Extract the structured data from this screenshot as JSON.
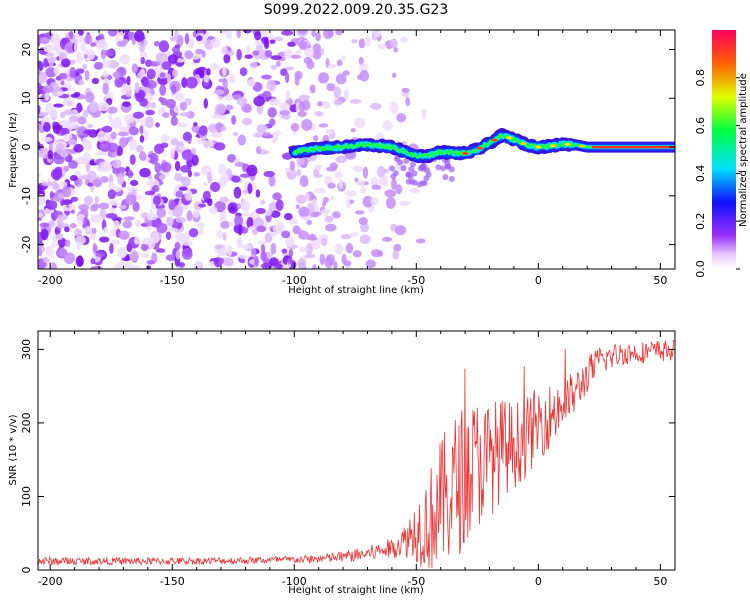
{
  "title": "S099.2022.009.20.35.G23",
  "chart_data": [
    {
      "type": "heatmap",
      "panel": "spectrogram",
      "xlabel": "Height of straight line (km)",
      "ylabel": "Frequency (Hz)",
      "xlim": [
        -205,
        56
      ],
      "ylim": [
        -25,
        24
      ],
      "xticks": [
        -200,
        -150,
        -100,
        -50,
        0,
        50
      ],
      "yticks": [
        -20,
        -10,
        0,
        10,
        20
      ],
      "noise_region_x": [
        -205,
        -60
      ],
      "signal_start_x": -100,
      "ridge": {
        "x": [
          -100,
          -90,
          -80,
          -70,
          -60,
          -50,
          -45,
          -40,
          -35,
          -30,
          -25,
          -20,
          -15,
          -10,
          -5,
          0,
          5,
          10,
          15,
          20,
          30,
          40,
          56
        ],
        "y": [
          -1,
          -0.3,
          0,
          0.5,
          0,
          -1.8,
          -1.8,
          -1,
          -1.2,
          -1.3,
          -0.5,
          0.8,
          2.4,
          1.6,
          0.5,
          0,
          0.2,
          0.6,
          0.5,
          0,
          0,
          0,
          0
        ]
      },
      "colorbar": {
        "label": "Normalized spectral amplitude",
        "range": [
          0.0,
          1.0
        ],
        "ticks": [
          "0.0",
          "0.2",
          "0.4",
          "0.6",
          "0.8"
        ],
        "colors": [
          "#ffffff",
          "#e8c8ff",
          "#9a30ff",
          "#1010ff",
          "#00e0ff",
          "#00ff40",
          "#e0ff00",
          "#ff6000",
          "#ff0060"
        ]
      }
    },
    {
      "type": "line",
      "panel": "snr",
      "xlabel": "Height of straight line (km)",
      "ylabel": "SNR (10 * v/v)",
      "xlim": [
        -205,
        56
      ],
      "ylim": [
        0,
        325
      ],
      "xticks": [
        -200,
        -150,
        -100,
        -50,
        0,
        50
      ],
      "yticks": [
        0,
        100,
        200,
        300
      ],
      "color": "#ee3333",
      "series": [
        {
          "name": "SNR",
          "x": [
            -205,
            -180,
            -150,
            -120,
            -100,
            -90,
            -80,
            -70,
            -60,
            -55,
            -50,
            -45,
            -40,
            -35,
            -30,
            -25,
            -20,
            -15,
            -10,
            -5,
            0,
            5,
            10,
            15,
            20,
            25,
            30,
            35,
            40,
            45,
            50,
            56
          ],
          "values": [
            12,
            12,
            12,
            13,
            14,
            15,
            18,
            22,
            30,
            40,
            55,
            65,
            90,
            110,
            130,
            145,
            150,
            165,
            170,
            180,
            200,
            210,
            225,
            240,
            265,
            285,
            290,
            295,
            295,
            297,
            298,
            298
          ],
          "noise": [
            6,
            5,
            5,
            5,
            5,
            6,
            8,
            10,
            14,
            22,
            45,
            70,
            90,
            100,
            100,
            90,
            80,
            70,
            60,
            55,
            50,
            45,
            40,
            30,
            25,
            20,
            18,
            16,
            15,
            15,
            15,
            15
          ]
        }
      ]
    }
  ]
}
